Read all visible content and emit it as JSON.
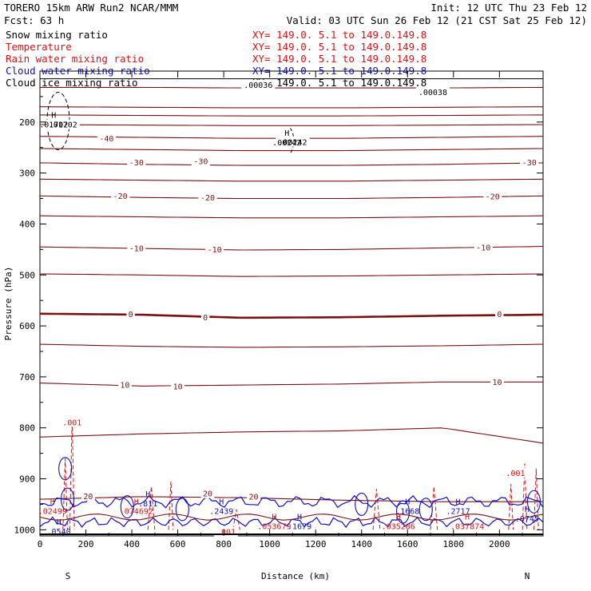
{
  "header": {
    "run_title": "TORERO  15km ARW   Run2    NCAR/MMM",
    "init": "Init: 12 UTC Thu 23 Feb 12",
    "fcst": "Fcst:   63 h",
    "valid": "Valid: 03 UTC Sun 26 Feb 12 (21 CST Sat 25 Feb 12)"
  },
  "colors": {
    "black": "#000000",
    "temperature": "#7a1010",
    "rain": "#e01010",
    "cloud_water": "#1010c8",
    "plot_bg": "#ffffff"
  },
  "chart_data": {
    "type": "line",
    "title": "Cross section",
    "xlabel": "Distance (km)",
    "ylabel": "Pressure (hPa)",
    "xlim": [
      0,
      2190
    ],
    "ylim": [
      100,
      1012
    ],
    "x_ticks": [
      "0",
      "200",
      "400",
      "600",
      "800",
      "1000",
      "1200",
      "1400",
      "1600",
      "1800",
      "2000"
    ],
    "x_tick_values": [
      0,
      200,
      400,
      600,
      800,
      1000,
      1200,
      1400,
      1600,
      1800,
      2000
    ],
    "y_ticks": [
      "200",
      "300",
      "400",
      "500",
      "600",
      "700",
      "800",
      "900",
      "1000"
    ],
    "y_tick_values": [
      200,
      300,
      400,
      500,
      600,
      700,
      800,
      900,
      1000
    ],
    "endpoint_labels": {
      "left": "S",
      "right": "N"
    },
    "legend": [
      {
        "name": "Snow mixing ratio",
        "color": "#000000",
        "xy": "XY= 149.0.  5.1 to 149.0.149.8"
      },
      {
        "name": "Temperature",
        "color": "#e01010",
        "xy": "XY= 149.0.  5.1 to 149.0.149.8"
      },
      {
        "name": "Rain water mixing ratio",
        "color": "#e01010",
        "xy": "XY= 149.0.  5.1 to 149.0.149.8"
      },
      {
        "name": "Cloud water mixing ratio",
        "color": "#1010c8",
        "xy": "XY= 149.0.  5.1 to 149.0.149.8"
      },
      {
        "name": "Cloud ice mixing ratio",
        "color": "#000000",
        "xy": "XY= 149.0.  5.1 to 149.0.149.8"
      }
    ],
    "temperature_isotherms": [
      {
        "value": -60,
        "p": [
          132,
          132,
          133,
          133,
          133,
          132
        ]
      },
      {
        "value": -55,
        "p": [
          170,
          171,
          172,
          172,
          171,
          170
        ]
      },
      {
        "value": -50,
        "p": [
          186,
          187,
          188,
          188,
          187,
          186
        ]
      },
      {
        "value": -45,
        "p": [
          205,
          206,
          207,
          207,
          206,
          205
        ]
      },
      {
        "value": -40,
        "p": [
          228,
          230,
          232,
          232,
          230,
          228
        ]
      },
      {
        "value": -35,
        "p": [
          252,
          254,
          256,
          256,
          254,
          252
        ]
      },
      {
        "value": -30,
        "p": [
          280,
          283,
          285,
          285,
          283,
          280
        ]
      },
      {
        "value": -25,
        "p": [
          312,
          314,
          316,
          316,
          314,
          312
        ]
      },
      {
        "value": -20,
        "p": [
          345,
          348,
          350,
          350,
          348,
          345
        ]
      },
      {
        "value": -15,
        "p": [
          384,
          386,
          388,
          388,
          386,
          384
        ]
      },
      {
        "value": -10,
        "p": [
          445,
          448,
          451,
          450,
          447,
          444
        ]
      },
      {
        "value": -5,
        "p": [
          498,
          500,
          503,
          502,
          500,
          498
        ]
      },
      {
        "value": 0,
        "p": [
          576,
          578,
          584,
          583,
          580,
          578
        ]
      },
      {
        "value": 5,
        "p": [
          636,
          640,
          642,
          641,
          639,
          636
        ]
      },
      {
        "value": 10,
        "p": [
          712,
          718,
          716,
          714,
          710,
          710
        ]
      },
      {
        "value": 15,
        "p": [
          818,
          812,
          808,
          806,
          800,
          830
        ]
      },
      {
        "value": 20,
        "p": [
          940,
          935,
          937,
          942,
          945,
          945
        ]
      }
    ],
    "contour_labels": [
      {
        "text": "-40",
        "x": 290,
        "p": 233,
        "color": "#7a1010"
      },
      {
        "text": "-30",
        "x": 420,
        "p": 280,
        "color": "#7a1010"
      },
      {
        "text": "-30",
        "x": 700,
        "p": 278,
        "color": "#7a1010"
      },
      {
        "text": "-30",
        "x": 2130,
        "p": 280,
        "color": "#7a1010"
      },
      {
        "text": "-20",
        "x": 350,
        "p": 346,
        "color": "#7a1010"
      },
      {
        "text": "-20",
        "x": 730,
        "p": 349,
        "color": "#7a1010"
      },
      {
        "text": "-20",
        "x": 1970,
        "p": 347,
        "color": "#7a1010"
      },
      {
        "text": "-10",
        "x": 420,
        "p": 449,
        "color": "#7a1010"
      },
      {
        "text": "-10",
        "x": 760,
        "p": 451,
        "color": "#7a1010"
      },
      {
        "text": "-10",
        "x": 1930,
        "p": 447,
        "color": "#7a1010"
      },
      {
        "text": "0",
        "x": 395,
        "p": 578,
        "color": "#7a1010"
      },
      {
        "text": "0",
        "x": 720,
        "p": 584,
        "color": "#7a1010"
      },
      {
        "text": "0",
        "x": 2000,
        "p": 578,
        "color": "#7a1010"
      },
      {
        "text": "10",
        "x": 370,
        "p": 717,
        "color": "#7a1010"
      },
      {
        "text": "10",
        "x": 600,
        "p": 720,
        "color": "#7a1010"
      },
      {
        "text": "10",
        "x": 1990,
        "p": 711,
        "color": "#7a1010"
      },
      {
        "text": "20",
        "x": 210,
        "p": 935,
        "color": "#7a1010"
      },
      {
        "text": "20",
        "x": 730,
        "p": 930,
        "color": "#7a1010"
      },
      {
        "text": "20",
        "x": 930,
        "p": 936,
        "color": "#7a1010"
      },
      {
        "text": ".001",
        "x": 140,
        "p": 790,
        "color": "#e01010"
      },
      {
        "text": ".001",
        "x": 810,
        "p": 1005,
        "color": "#e01010"
      },
      {
        "text": ".001",
        "x": 2070,
        "p": 890,
        "color": "#e01010"
      },
      {
        "text": ".00036",
        "x": 950,
        "p": 128,
        "color": "#000000"
      },
      {
        "text": ".00038",
        "x": 1710,
        "p": 142,
        "color": "#000000"
      },
      {
        "text": ".00242",
        "x": 1100,
        "p": 240,
        "color": "#000000"
      },
      {
        "text": ".01702",
        "x": 100,
        "p": 206,
        "color": "#000000"
      }
    ],
    "extrema": [
      {
        "mark": "H",
        "value": ".01702",
        "x": 60,
        "p": 192,
        "color": "#000000"
      },
      {
        "mark": "H",
        "value": ".00242",
        "x": 1075,
        "p": 227,
        "color": "#000000"
      },
      {
        "mark": "H",
        "value": ".02499",
        "x": 55,
        "p": 950,
        "color": "#e01010"
      },
      {
        "mark": "H",
        "value": ".0540",
        "x": 82,
        "p": 990,
        "color": "#1010c8"
      },
      {
        "mark": "H",
        "value": ".074692",
        "x": 420,
        "p": 950,
        "color": "#e01010"
      },
      {
        "mark": "H",
        "value": ".811",
        "x": 470,
        "p": 935,
        "color": "#1010c8"
      },
      {
        "mark": "H",
        "value": ".2439",
        "x": 790,
        "p": 950,
        "color": "#1010c8"
      },
      {
        "mark": "H",
        "value": ".053679",
        "x": 1020,
        "p": 980,
        "color": "#e01010"
      },
      {
        "mark": "H",
        "value": ".1679",
        "x": 1130,
        "p": 980,
        "color": "#1010c8"
      },
      {
        "mark": "H",
        "value": ".035286",
        "x": 1560,
        "p": 980,
        "color": "#e01010"
      },
      {
        "mark": "H",
        "value": ".1668",
        "x": 1600,
        "p": 950,
        "color": "#1010c8"
      },
      {
        "mark": "H",
        "value": ".2717",
        "x": 1820,
        "p": 950,
        "color": "#1010c8"
      },
      {
        "mark": "H",
        "value": ".037874",
        "x": 1860,
        "p": 980,
        "color": "#e01010"
      },
      {
        "mark": "H",
        "value": ".0745",
        "x": 2120,
        "p": 965,
        "color": "#1010c8"
      }
    ]
  }
}
